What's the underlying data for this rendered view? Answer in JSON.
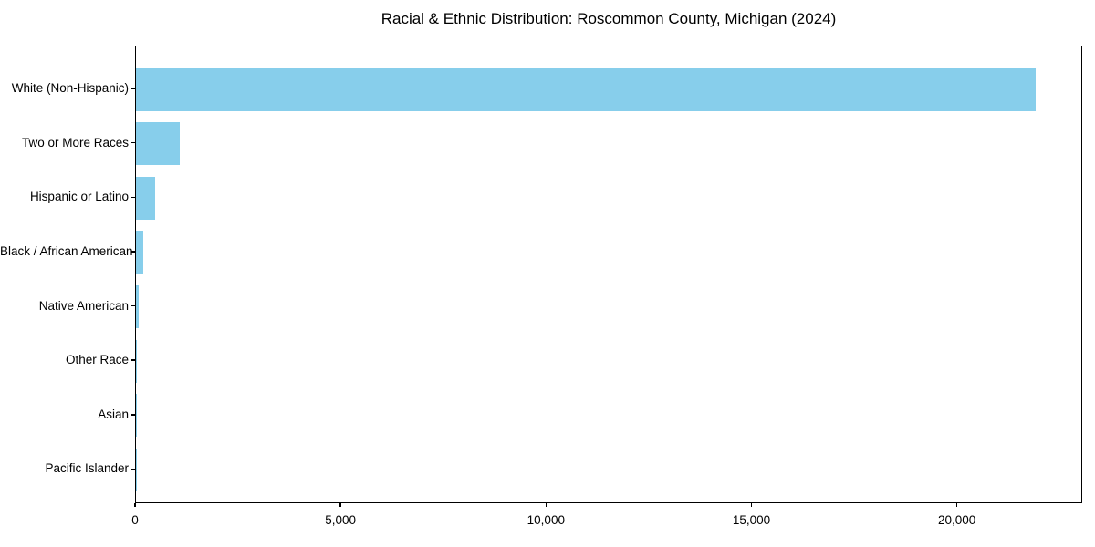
{
  "chart_data": {
    "type": "bar",
    "orientation": "horizontal",
    "title": "Racial & Ethnic Distribution: Roscommon County, Michigan (2024)",
    "categories": [
      "White (Non-Hispanic)",
      "Two or More Races",
      "Hispanic or Latino",
      "Black / African American",
      "Native American",
      "Other Race",
      "Asian",
      "Pacific Islander"
    ],
    "values": [
      21930,
      1060,
      470,
      180,
      70,
      25,
      20,
      5
    ],
    "xlabel": "",
    "ylabel": "",
    "xlim": [
      0,
      23050
    ],
    "xticks": [
      0,
      5000,
      10000,
      15000,
      20000
    ],
    "xtick_labels": [
      "0",
      "5,000",
      "10,000",
      "15,000",
      "20,000"
    ],
    "bar_color": "#87CEEB",
    "background_color": "#ffffff",
    "axis_color": "#000000",
    "grid": false,
    "legend": null
  }
}
